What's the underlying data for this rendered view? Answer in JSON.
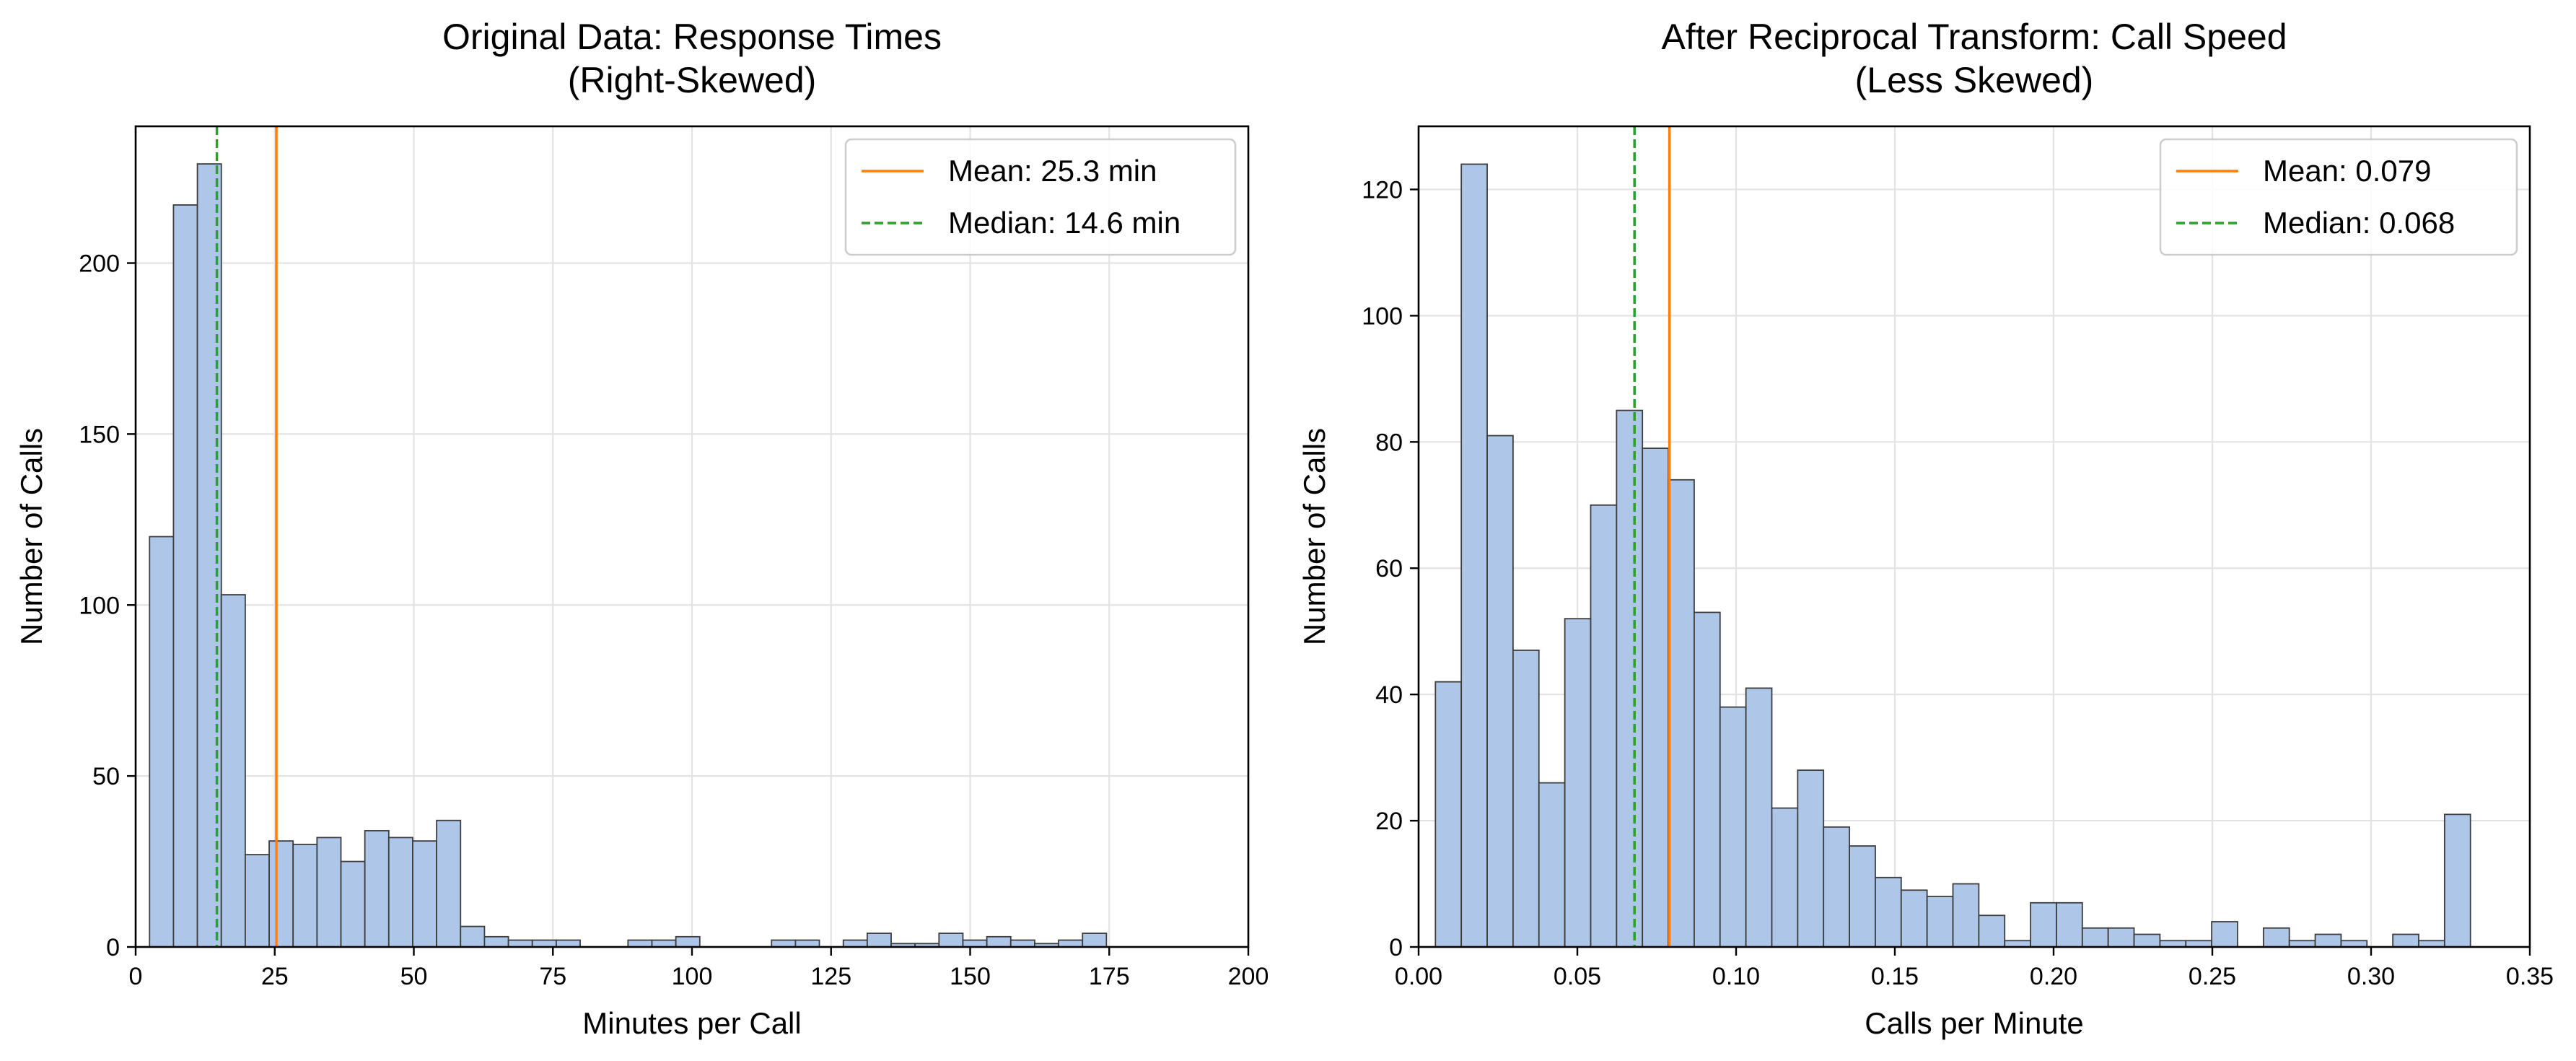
{
  "colors": {
    "bar_fill": "#aec7e8",
    "bar_edge": "#3d3d3d",
    "mean_line": "#ff7f0e",
    "median_line": "#2ca02c",
    "grid": "#e3e3e3"
  },
  "chart_data": [
    {
      "type": "bar",
      "title": "Original Data: Response Times",
      "subtitle": "(Right-Skewed)",
      "xlabel": "Minutes per Call",
      "ylabel": "Number of Calls",
      "xlim": [
        0,
        200
      ],
      "ylim": [
        0,
        240
      ],
      "xticks": [
        0,
        25,
        50,
        75,
        100,
        125,
        150,
        175,
        200
      ],
      "xtick_labels": [
        "0",
        "25",
        "50",
        "75",
        "100",
        "125",
        "150",
        "175",
        "200"
      ],
      "yticks": [
        0,
        50,
        100,
        150,
        200
      ],
      "ytick_labels": [
        "0",
        "50",
        "100",
        "150",
        "200"
      ],
      "grid": true,
      "legend_position": "upper right",
      "bin_width": 4.3,
      "bin_start": 2.5,
      "values": [
        120,
        217,
        229,
        103,
        27,
        31,
        30,
        32,
        25,
        34,
        32,
        31,
        37,
        6,
        3,
        2,
        2,
        2,
        0,
        0,
        2,
        2,
        3,
        0,
        0,
        0,
        2,
        2,
        0,
        2,
        4,
        1,
        1,
        4,
        2,
        3,
        2,
        1,
        2,
        4
      ],
      "mean": 25.3,
      "median": 14.6,
      "legend": [
        {
          "kind": "mean",
          "label": "Mean: 25.3 min"
        },
        {
          "kind": "median",
          "label": "Median: 14.6 min"
        }
      ]
    },
    {
      "type": "bar",
      "title": "After Reciprocal Transform: Call Speed",
      "subtitle": "(Less Skewed)",
      "xlabel": "Calls per Minute",
      "ylabel": "Number of Calls",
      "xlim": [
        0,
        0.35
      ],
      "ylim": [
        0,
        130
      ],
      "xticks": [
        0,
        0.05,
        0.1,
        0.15,
        0.2,
        0.25,
        0.3,
        0.35
      ],
      "xtick_labels": [
        "0.00",
        "0.05",
        "0.10",
        "0.15",
        "0.20",
        "0.25",
        "0.30",
        "0.35"
      ],
      "yticks": [
        0,
        20,
        40,
        60,
        80,
        100,
        120
      ],
      "ytick_labels": [
        "0",
        "20",
        "40",
        "60",
        "80",
        "100",
        "120"
      ],
      "grid": true,
      "legend_position": "upper right",
      "bin_width": 0.00815,
      "bin_start": 0.0053,
      "values": [
        42,
        124,
        81,
        47,
        26,
        52,
        70,
        85,
        79,
        74,
        53,
        38,
        41,
        22,
        28,
        19,
        16,
        11,
        9,
        8,
        10,
        5,
        1,
        7,
        7,
        3,
        3,
        2,
        1,
        1,
        4,
        0,
        3,
        1,
        2,
        1,
        0,
        2,
        1,
        21
      ],
      "mean": 0.079,
      "median": 0.068,
      "legend": [
        {
          "kind": "mean",
          "label": "Mean: 0.079"
        },
        {
          "kind": "median",
          "label": "Median: 0.068"
        }
      ]
    }
  ]
}
